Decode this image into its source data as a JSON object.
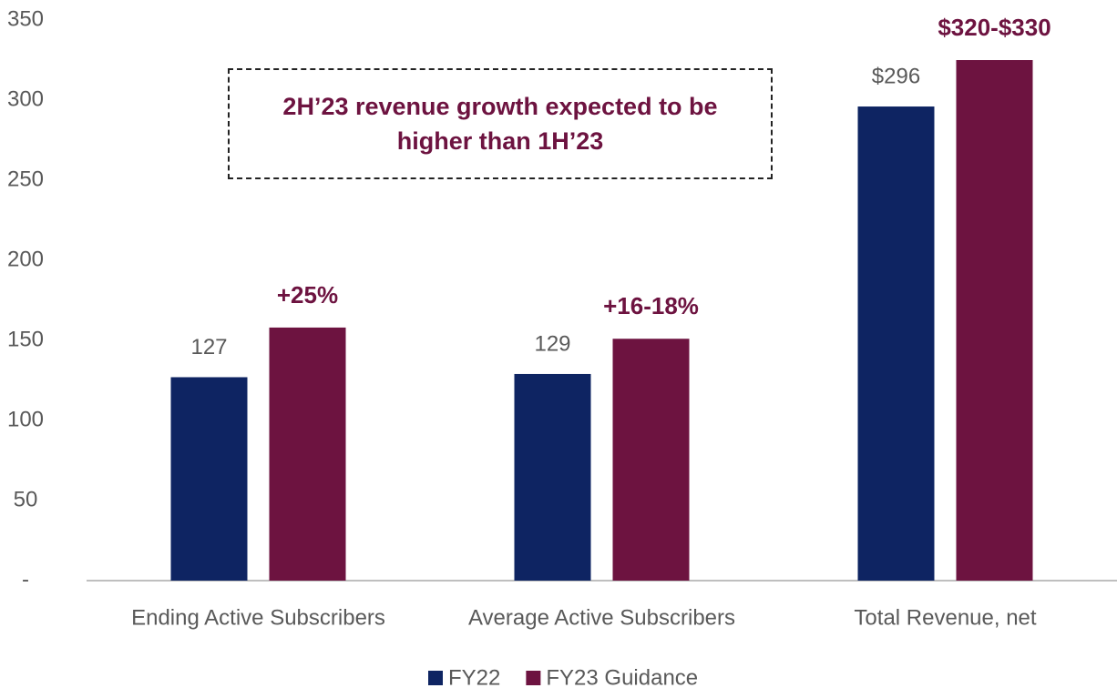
{
  "chart_data": {
    "type": "bar",
    "categories": [
      "Ending Active Subscribers",
      "Average Active Subscribers",
      "Total Revenue, net"
    ],
    "series": [
      {
        "name": "FY22",
        "color": "#0e2462",
        "values": [
          127,
          129,
          296
        ],
        "value_labels": [
          "127",
          "129",
          "$296"
        ]
      },
      {
        "name": "FY23 Guidance",
        "color": "#6d1340",
        "values": [
          158,
          151,
          325
        ]
      }
    ],
    "annotations": [
      "+25%",
      "+16-18%",
      "$320-$330"
    ],
    "note": "2H’23 revenue growth expected to be higher than 1H’23",
    "ylim": [
      0,
      350
    ],
    "yticks": [
      {
        "value": 0,
        "label": "-"
      },
      50,
      100,
      150,
      200,
      250,
      300,
      350
    ],
    "legend": "bottom"
  }
}
